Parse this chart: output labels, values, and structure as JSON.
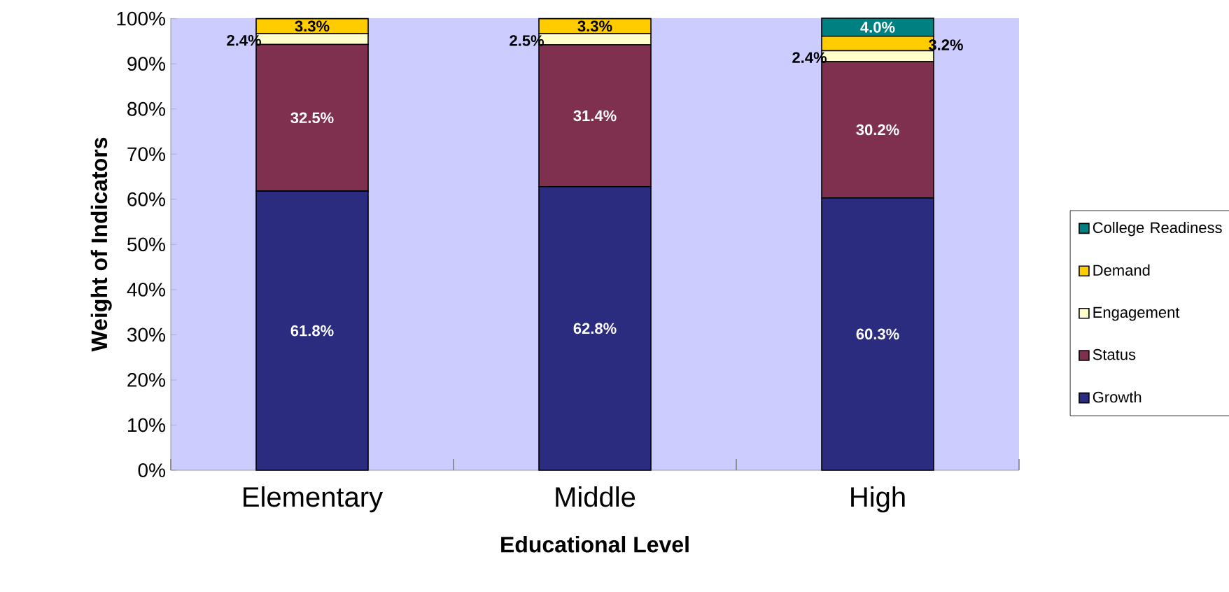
{
  "chart_data": {
    "type": "bar",
    "stacked": true,
    "data_labels": true,
    "legend": "right",
    "xlabel": "Educational Level",
    "ylabel": "Weight of Indicators",
    "categories": [
      "Elementary",
      "Middle",
      "High"
    ],
    "ylim": [
      0,
      100.1
    ],
    "yticks": [
      {
        "value": 0,
        "label": "0%"
      },
      {
        "value": 10,
        "label": "10%"
      },
      {
        "value": 20,
        "label": "20%"
      },
      {
        "value": 30,
        "label": "30%"
      },
      {
        "value": 40,
        "label": "40%"
      },
      {
        "value": 50,
        "label": "50%"
      },
      {
        "value": 60,
        "label": "60%"
      },
      {
        "value": 70,
        "label": "70%"
      },
      {
        "value": 80,
        "label": "80%"
      },
      {
        "value": 90,
        "label": "90%"
      },
      {
        "value": 100,
        "label": "100%"
      }
    ],
    "series": [
      {
        "name": "Growth",
        "color": "#2b2b80",
        "values": [
          61.8,
          62.8,
          60.3
        ],
        "value_labels": [
          "61.8%",
          "62.8%",
          "60.3%"
        ]
      },
      {
        "name": "Status",
        "color": "#80304f",
        "values": [
          32.5,
          31.4,
          30.2
        ],
        "value_labels": [
          "32.5%",
          "31.4%",
          "30.2%"
        ]
      },
      {
        "name": "Engagement",
        "color": "#ffffcc",
        "values": [
          2.4,
          2.5,
          2.4
        ],
        "value_labels": [
          "2.4%",
          "2.5%",
          "2.4%"
        ]
      },
      {
        "name": "Demand",
        "color": "#ffcc00",
        "values": [
          3.3,
          3.3,
          3.2
        ],
        "value_labels": [
          "3.3%",
          "3.3%",
          "3.2%"
        ]
      },
      {
        "name": "College Readiness",
        "color": "#008080",
        "values": [
          null,
          null,
          4.0
        ],
        "value_labels": [
          null,
          null,
          "4.0%"
        ]
      }
    ]
  }
}
